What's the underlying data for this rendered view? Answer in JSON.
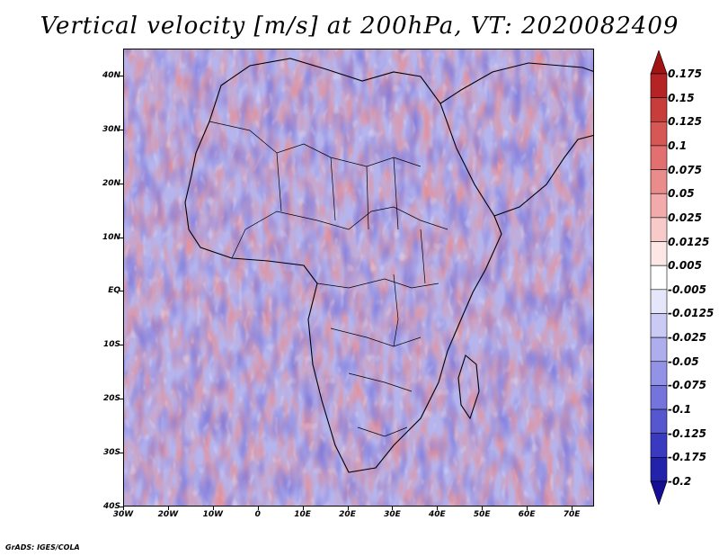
{
  "title": "Vertical velocity [m/s] at 200hPa, VT: 2020082409",
  "footer": "GrADS: IGES/COLA",
  "axes": {
    "lat_labels": [
      "40N",
      "30N",
      "20N",
      "10N",
      "EQ",
      "10S",
      "20S",
      "30S",
      "40S"
    ],
    "lon_labels": [
      "30W",
      "20W",
      "10W",
      "0",
      "10E",
      "20E",
      "30E",
      "40E",
      "50E",
      "60E",
      "70E"
    ]
  },
  "colorbar": {
    "labels": [
      "0.175",
      "0.15",
      "0.125",
      "0.1",
      "0.075",
      "0.05",
      "0.025",
      "0.0125",
      "0.005",
      "-0.005",
      "-0.0125",
      "-0.025",
      "-0.05",
      "-0.075",
      "-0.1",
      "-0.125",
      "-0.175",
      "-0.2"
    ],
    "colors": [
      "#a01414",
      "#b42424",
      "#c83c3c",
      "#d75656",
      "#e27070",
      "#ea8c8c",
      "#f2aaaa",
      "#f8caca",
      "#fce6e6",
      "#ffffff",
      "#e6e6fa",
      "#cacaf5",
      "#aeaeef",
      "#9292e6",
      "#7474dc",
      "#5656cf",
      "#3a3ac0",
      "#2222aa",
      "#140e96"
    ]
  },
  "map": {
    "lon_range": [
      -30,
      75
    ],
    "lat_range": [
      -40,
      45
    ],
    "background_color": "#b6b4ec",
    "positive_color": "#ec8a8a",
    "negative_color": "#7a76dc"
  }
}
